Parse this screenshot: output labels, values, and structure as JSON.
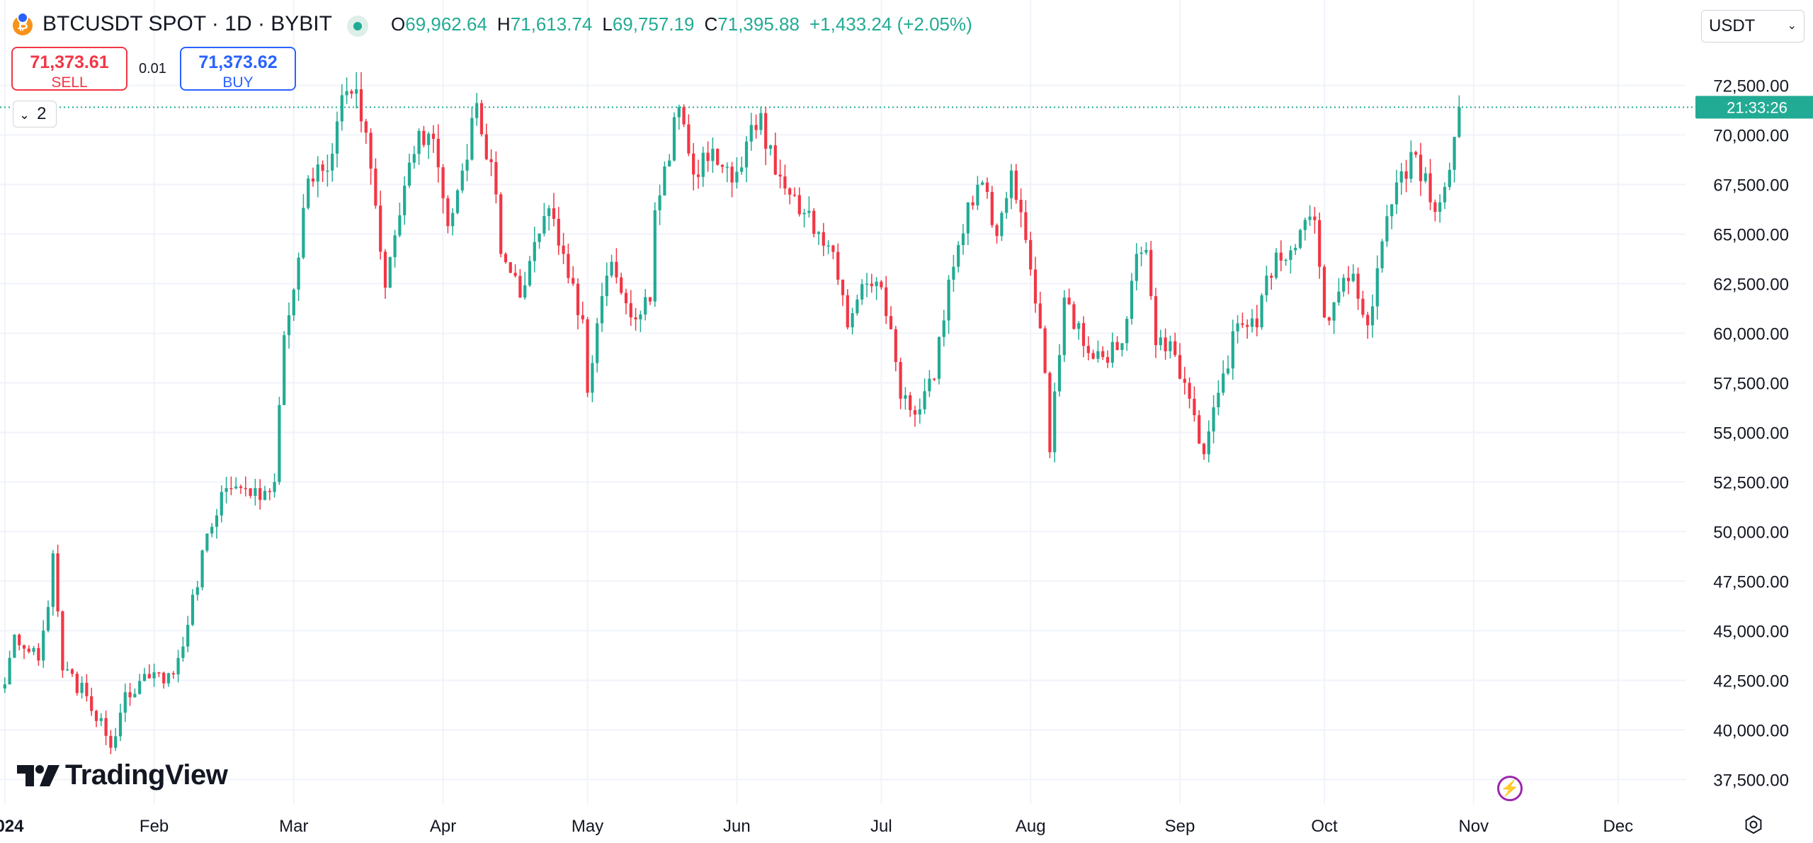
{
  "header": {
    "symbol_title": "BTCUSDT SPOT · 1D · BYBIT",
    "ohlc": {
      "o_label": "O",
      "o_value": "69,962.64",
      "h_label": "H",
      "h_value": "71,613.74",
      "l_label": "L",
      "l_value": "69,757.19",
      "c_label": "C",
      "c_value": "71,395.88",
      "change": "+1,433.24 (+2.05%)"
    },
    "currency": "USDT",
    "currency_icon": "chevron-down-icon"
  },
  "trade": {
    "sell_price": "71,373.61",
    "sell_label": "SELL",
    "spread": "0.01",
    "buy_price": "71,373.62",
    "buy_label": "BUY"
  },
  "indicator_toggle": {
    "count": "2",
    "icon": "chevron-down-icon"
  },
  "branding": {
    "logo_text": "TradingView"
  },
  "colors": {
    "up": "#22ab94",
    "down": "#f23645",
    "grid": "#f0f3fa",
    "text": "#131722",
    "countdown_bg": "#22ab94",
    "flash": "#9c27b0"
  },
  "chart_data": {
    "type": "candlestick",
    "interval": "1D",
    "y_axis": {
      "side": "right",
      "min": 36800,
      "max": 74300,
      "ticks": [
        "72,500.00",
        "70,000.00",
        "67,500.00",
        "65,000.00",
        "62,500.00",
        "60,000.00",
        "57,500.00",
        "55,000.00",
        "52,500.00",
        "50,000.00",
        "47,500.00",
        "45,000.00",
        "42,500.00",
        "40,000.00",
        "37,500.00"
      ],
      "tick_values": [
        72500,
        70000,
        67500,
        65000,
        62500,
        60000,
        57500,
        55000,
        52500,
        50000,
        47500,
        45000,
        42500,
        40000,
        37500
      ]
    },
    "x_axis": {
      "start": "2023-12-31",
      "end": "2024-12-15",
      "labels": [
        {
          "date": "2024-01-01",
          "text": "2024",
          "bold": true
        },
        {
          "date": "2024-02-01",
          "text": "Feb"
        },
        {
          "date": "2024-03-01",
          "text": "Mar"
        },
        {
          "date": "2024-04-01",
          "text": "Apr"
        },
        {
          "date": "2024-05-01",
          "text": "May"
        },
        {
          "date": "2024-06-01",
          "text": "Jun"
        },
        {
          "date": "2024-07-01",
          "text": "Jul"
        },
        {
          "date": "2024-08-01",
          "text": "Aug"
        },
        {
          "date": "2024-09-01",
          "text": "Sep"
        },
        {
          "date": "2024-10-01",
          "text": "Oct"
        },
        {
          "date": "2024-11-01",
          "text": "Nov"
        },
        {
          "date": "2024-12-01",
          "text": "Dec"
        }
      ]
    },
    "grid": true,
    "last_price": 71395.88,
    "countdown": "21:33:26",
    "anchors": [
      [
        "2024-01-01",
        42300
      ],
      [
        "2024-01-03",
        44800
      ],
      [
        "2024-01-05",
        44100
      ],
      [
        "2024-01-08",
        43500
      ],
      [
        "2024-01-10",
        46200
      ],
      [
        "2024-01-11",
        48900
      ],
      [
        "2024-01-13",
        43000
      ],
      [
        "2024-01-18",
        41700
      ],
      [
        "2024-01-22",
        39700
      ],
      [
        "2024-01-23",
        39100
      ],
      [
        "2024-01-26",
        41900
      ],
      [
        "2024-01-31",
        42600
      ],
      [
        "2024-02-05",
        42800
      ],
      [
        "2024-02-08",
        45300
      ],
      [
        "2024-02-12",
        49900
      ],
      [
        "2024-02-15",
        52000
      ],
      [
        "2024-02-21",
        51800
      ],
      [
        "2024-02-26",
        52500
      ],
      [
        "2024-02-28",
        59900
      ],
      [
        "2024-03-01",
        62200
      ],
      [
        "2024-03-04",
        67800
      ],
      [
        "2024-03-08",
        68200
      ],
      [
        "2024-03-11",
        72000
      ],
      [
        "2024-03-14",
        72300
      ],
      [
        "2024-03-17",
        68300
      ],
      [
        "2024-03-20",
        62300
      ],
      [
        "2024-03-25",
        68600
      ],
      [
        "2024-03-27",
        70200
      ],
      [
        "2024-03-30",
        69800
      ],
      [
        "2024-04-02",
        65400
      ],
      [
        "2024-04-05",
        68200
      ],
      [
        "2024-04-08",
        71600
      ],
      [
        "2024-04-12",
        67000
      ],
      [
        "2024-04-13",
        64000
      ],
      [
        "2024-04-17",
        61800
      ],
      [
        "2024-04-20",
        64600
      ],
      [
        "2024-04-23",
        66300
      ],
      [
        "2024-04-26",
        64000
      ],
      [
        "2024-04-30",
        60700
      ],
      [
        "2024-05-01",
        57000
      ],
      [
        "2024-05-03",
        60500
      ],
      [
        "2024-05-06",
        63600
      ],
      [
        "2024-05-10",
        60800
      ],
      [
        "2024-05-14",
        61600
      ],
      [
        "2024-05-15",
        66200
      ],
      [
        "2024-05-20",
        71400
      ],
      [
        "2024-05-23",
        68000
      ],
      [
        "2024-05-27",
        69300
      ],
      [
        "2024-05-31",
        67600
      ],
      [
        "2024-06-04",
        70500
      ],
      [
        "2024-06-06",
        71100
      ],
      [
        "2024-06-07",
        69300
      ],
      [
        "2024-06-11",
        67300
      ],
      [
        "2024-06-14",
        66000
      ],
      [
        "2024-06-18",
        65100
      ],
      [
        "2024-06-21",
        64100
      ],
      [
        "2024-06-24",
        60300
      ],
      [
        "2024-06-26",
        61700
      ],
      [
        "2024-06-30",
        62600
      ],
      [
        "2024-07-03",
        60200
      ],
      [
        "2024-07-05",
        56700
      ],
      [
        "2024-07-08",
        55900
      ],
      [
        "2024-07-12",
        57700
      ],
      [
        "2024-07-15",
        62700
      ],
      [
        "2024-07-19",
        66600
      ],
      [
        "2024-07-22",
        67600
      ],
      [
        "2024-07-25",
        64900
      ],
      [
        "2024-07-28",
        68200
      ],
      [
        "2024-07-30",
        66100
      ],
      [
        "2024-08-02",
        61500
      ],
      [
        "2024-08-04",
        58000
      ],
      [
        "2024-08-05",
        54000
      ],
      [
        "2024-08-08",
        61800
      ],
      [
        "2024-08-13",
        59000
      ],
      [
        "2024-08-16",
        58800
      ],
      [
        "2024-08-20",
        59500
      ],
      [
        "2024-08-23",
        64000
      ],
      [
        "2024-08-25",
        64200
      ],
      [
        "2024-08-27",
        59400
      ],
      [
        "2024-08-31",
        58900
      ],
      [
        "2024-09-02",
        57500
      ],
      [
        "2024-09-06",
        53900
      ],
      [
        "2024-09-09",
        57000
      ],
      [
        "2024-09-13",
        60500
      ],
      [
        "2024-09-17",
        60300
      ],
      [
        "2024-09-19",
        62900
      ],
      [
        "2024-09-26",
        65200
      ],
      [
        "2024-09-29",
        65700
      ],
      [
        "2024-10-01",
        60800
      ],
      [
        "2024-10-04",
        62100
      ],
      [
        "2024-10-07",
        63000
      ],
      [
        "2024-10-10",
        60400
      ],
      [
        "2024-10-14",
        65900
      ],
      [
        "2024-10-16",
        67600
      ],
      [
        "2024-10-20",
        69000
      ],
      [
        "2024-10-23",
        66600
      ],
      [
        "2024-10-25",
        66600
      ],
      [
        "2024-10-28",
        69900
      ],
      [
        "2024-10-29",
        71400
      ]
    ]
  }
}
